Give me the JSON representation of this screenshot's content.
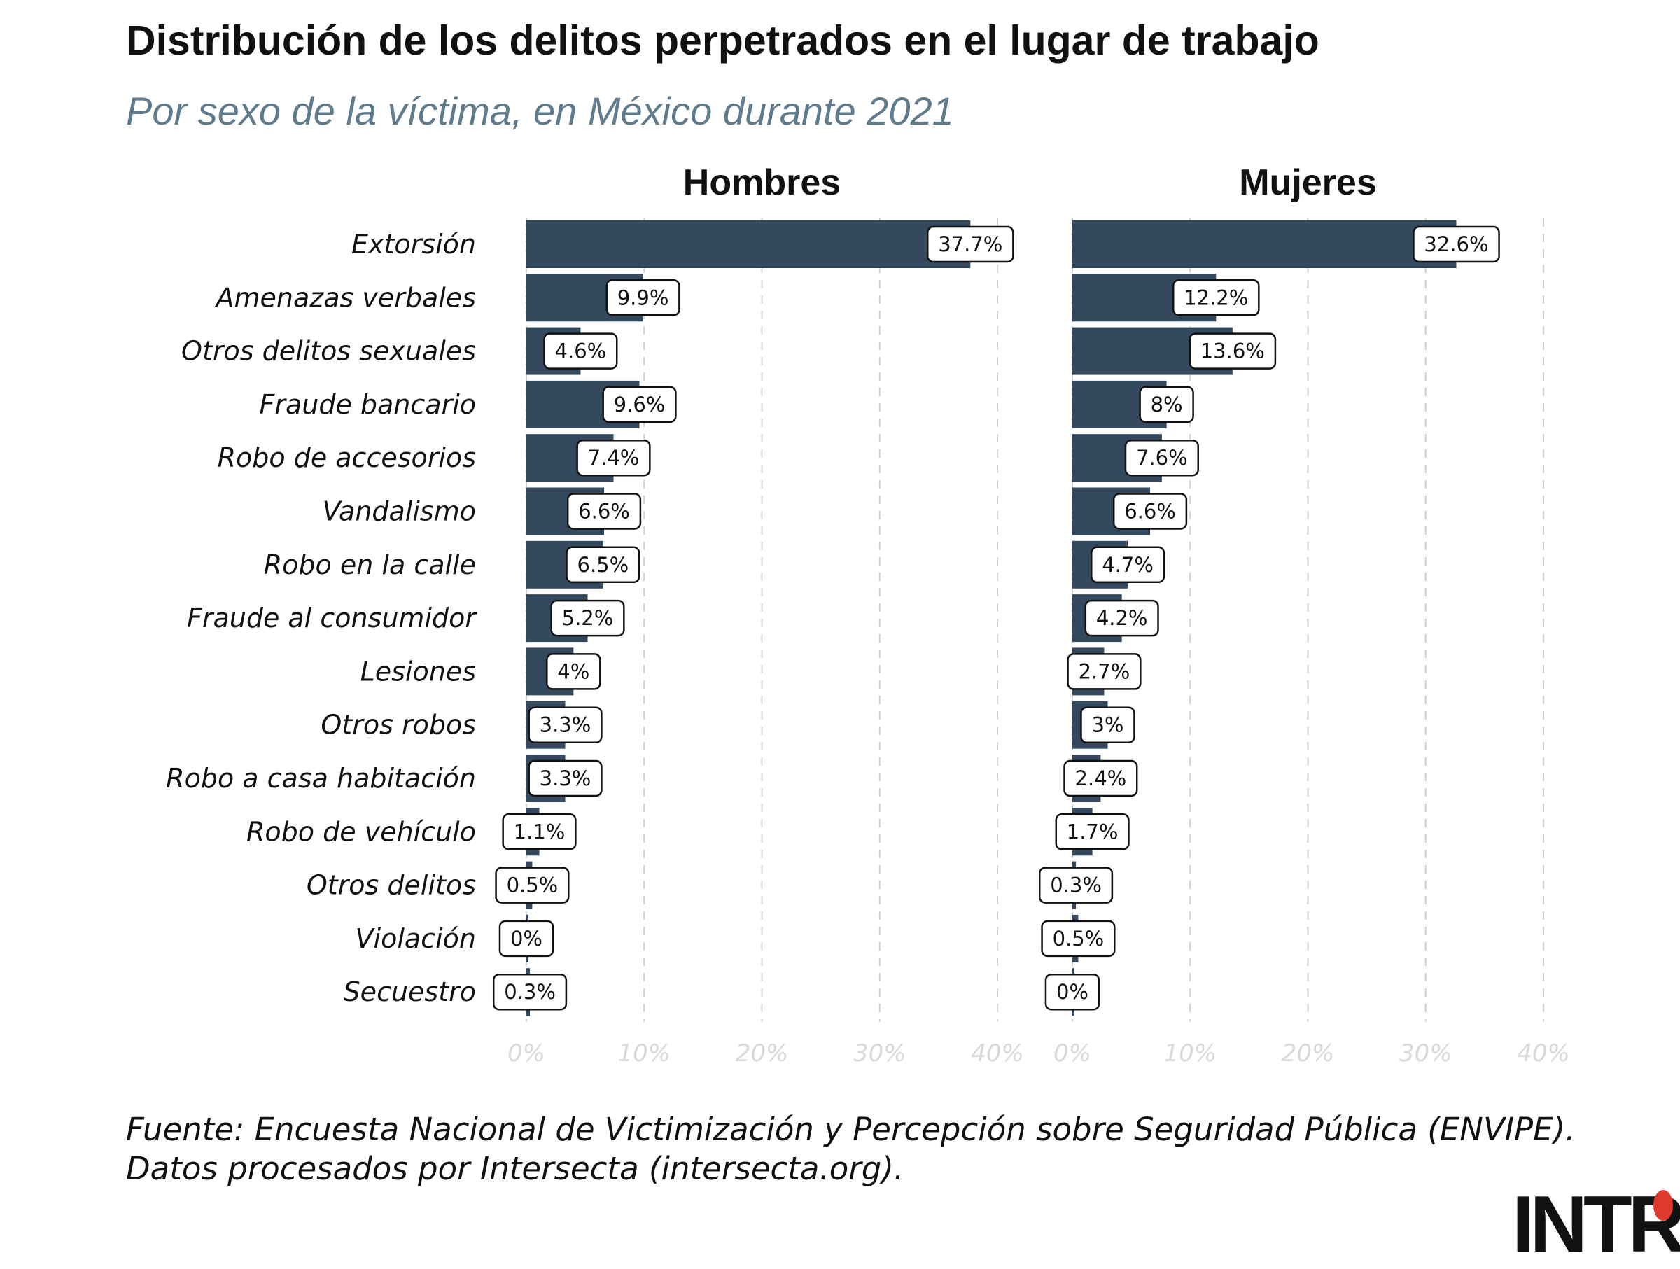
{
  "title": "Distribución de los delitos perpetrados en el lugar de trabajo",
  "subtitle": "Por sexo de la víctima, en México durante 2021",
  "source_lines": [
    "Fuente: Encuesta Nacional de Victimización y Percepción sobre Seguridad Pública (ENVIPE).",
    "Datos procesados por Intersecta (intersecta.org)."
  ],
  "logo": {
    "text": "INTR",
    "accent_color": "#e03a2f"
  },
  "colors": {
    "bar": "#34495e",
    "subtitle": "#5f7b8c",
    "grid": "#cfcfcf",
    "tick": "#d9d9d9"
  },
  "chart_data": {
    "type": "bar",
    "orientation": "horizontal",
    "title": "Distribución de los delitos perpetrados en el lugar de trabajo",
    "subtitle": "Por sexo de la víctima, en México durante 2021",
    "categories": [
      "Extorsión",
      "Amenazas verbales",
      "Otros delitos sexuales",
      "Fraude bancario",
      "Robo de accesorios",
      "Vandalismo",
      "Robo en la calle",
      "Fraude al consumidor",
      "Lesiones",
      "Otros robos",
      "Robo a casa habitación",
      "Robo de vehículo",
      "Otros delitos",
      "Violación",
      "Secuestro"
    ],
    "xlim": [
      0,
      40
    ],
    "x_ticks": [
      "0%",
      "10%",
      "20%",
      "30%",
      "40%"
    ],
    "tick_values": [
      0,
      10,
      20,
      30,
      40
    ],
    "grid": true,
    "facets": [
      {
        "name": "Hombres",
        "values": [
          37.7,
          9.9,
          4.6,
          9.6,
          7.4,
          6.6,
          6.5,
          5.2,
          4,
          3.3,
          3.3,
          1.1,
          0.5,
          0,
          0.3
        ],
        "labels": [
          "37.7%",
          "9.9%",
          "4.6%",
          "9.6%",
          "7.4%",
          "6.6%",
          "6.5%",
          "5.2%",
          "4%",
          "3.3%",
          "3.3%",
          "1.1%",
          "0.5%",
          "0%",
          "0.3%"
        ]
      },
      {
        "name": "Mujeres",
        "values": [
          32.6,
          12.2,
          13.6,
          8,
          7.6,
          6.6,
          4.7,
          4.2,
          2.7,
          3,
          2.4,
          1.7,
          0.3,
          0.5,
          0
        ],
        "labels": [
          "32.6%",
          "12.2%",
          "13.6%",
          "8%",
          "7.6%",
          "6.6%",
          "4.7%",
          "4.2%",
          "2.7%",
          "3%",
          "2.4%",
          "1.7%",
          "0.3%",
          "0.5%",
          "0%"
        ]
      }
    ]
  }
}
